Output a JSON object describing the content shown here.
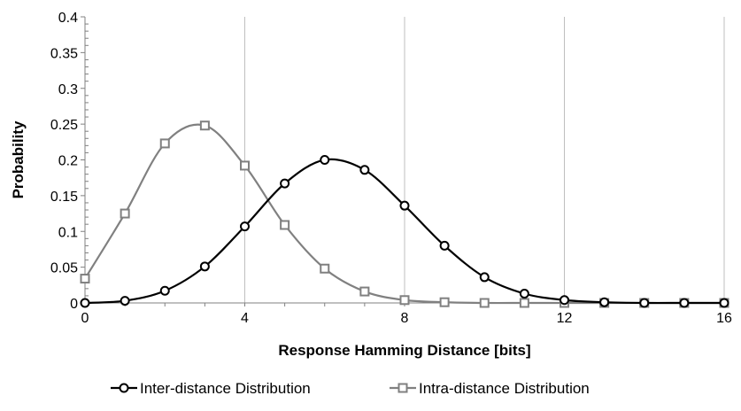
{
  "chart_data": {
    "type": "line",
    "title": "",
    "xlabel": "Response Hamming Distance [bits]",
    "ylabel": "Probability",
    "xlim": [
      0,
      16
    ],
    "ylim": [
      0,
      0.4
    ],
    "x_ticks": [
      "0",
      "4",
      "8",
      "12",
      "16"
    ],
    "y_ticks": [
      "0",
      "0.05",
      "0.1",
      "0.15",
      "0.2",
      "0.25",
      "0.3",
      "0.35",
      "0.4"
    ],
    "grid": "vertical major gridlines",
    "legend_position": "bottom",
    "x": [
      0,
      1,
      2,
      3,
      4,
      5,
      6,
      7,
      8,
      9,
      10,
      11,
      12,
      13,
      14,
      15,
      16
    ],
    "series": [
      {
        "name": "Inter-distance Distribution",
        "color": "#000000",
        "marker": "circle",
        "values": [
          0.0,
          0.003,
          0.017,
          0.051,
          0.107,
          0.167,
          0.2,
          0.186,
          0.136,
          0.08,
          0.036,
          0.013,
          0.004,
          0.001,
          0.0,
          0.0,
          0.0
        ]
      },
      {
        "name": "Intra-distance Distribution",
        "color": "#808080",
        "marker": "square",
        "values": [
          0.034,
          0.125,
          0.223,
          0.248,
          0.192,
          0.109,
          0.048,
          0.016,
          0.004,
          0.001,
          0.0,
          0.0,
          0.0,
          0.0,
          0.0,
          0.0,
          0.0
        ]
      }
    ]
  }
}
